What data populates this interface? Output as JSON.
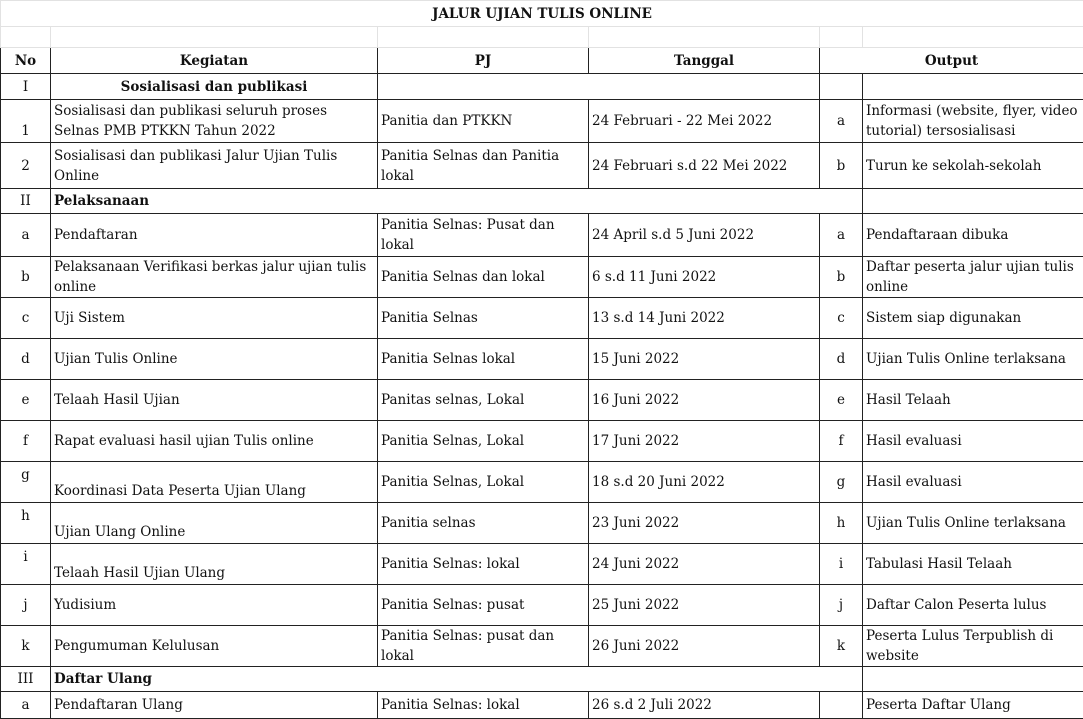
{
  "title": "JALUR UJIAN TULIS ONLINE",
  "headers": {
    "no": "No",
    "kegiatan": "Kegiatan",
    "pj": "PJ",
    "tanggal": "Tanggal",
    "output": "Output"
  },
  "rows": [
    {
      "type": "section-centered",
      "no": "I",
      "kegiatan": "Sosialisasi dan publikasi"
    },
    {
      "type": "item",
      "no": "1",
      "kegiatan": "Sosialisasi dan publikasi seluruh proses Selnas PMB PTKKN Tahun 2022",
      "pj": "Panitia dan PTKKN",
      "tanggal": "24 Februari  - 22 Mei 2022",
      "letter": "a",
      "output": "Informasi (website, flyer, video tutorial) tersosialisasi"
    },
    {
      "type": "item",
      "no": "2",
      "kegiatan": "Sosialisasi dan publikasi Jalur Ujian Tulis Online",
      "pj": "Panitia Selnas dan Panitia lokal",
      "tanggal": "24 Februari s.d 22 Mei 2022",
      "letter": "b",
      "output": "Turun ke sekolah-sekolah"
    },
    {
      "type": "section",
      "no": "II",
      "kegiatan": "Pelaksanaan"
    },
    {
      "type": "item",
      "no": "a",
      "kegiatan": "Pendaftaran",
      "pj": "Panitia Selnas: Pusat dan lokal",
      "tanggal": "24 April s.d 5 Juni 2022",
      "letter": "a",
      "output": "Pendaftaraan dibuka"
    },
    {
      "type": "item",
      "no": "b",
      "kegiatan": "Pelaksanaan Verifikasi berkas jalur ujian tulis online",
      "pj": "Panitia Selnas dan lokal",
      "tanggal": "6 s.d 11 Juni 2022",
      "letter": "b",
      "output": "Daftar peserta jalur ujian tulis online"
    },
    {
      "type": "item",
      "no": "c",
      "kegiatan": "Uji Sistem",
      "pj": "Panitia Selnas",
      "tanggal": "13 s.d 14 Juni 2022",
      "letter": "c",
      "output": "Sistem siap digunakan"
    },
    {
      "type": "item",
      "no": "d",
      "kegiatan": "Ujian Tulis Online",
      "pj": "Panitia Selnas lokal",
      "tanggal": "15 Juni 2022",
      "letter": "d",
      "output": "Ujian Tulis Online terlaksana"
    },
    {
      "type": "item",
      "no": "e",
      "kegiatan": "Telaah Hasil Ujian",
      "pj": "Panitas selnas, Lokal",
      "tanggal": "16 Juni 2022",
      "letter": "e",
      "output": "Hasil Telaah"
    },
    {
      "type": "item",
      "no": "f",
      "kegiatan": "Rapat evaluasi hasil ujian Tulis online",
      "pj": "Panitia Selnas, Lokal",
      "tanggal": "17 Juni 2022",
      "letter": "f",
      "output": "Hasil evaluasi"
    },
    {
      "type": "item",
      "no": "g",
      "kegiatan": "Koordinasi Data Peserta Ujian Ulang",
      "pj": "Panitia Selnas, Lokal",
      "tanggal": "18 s.d 20 Juni 2022",
      "letter": "g",
      "output": "Hasil evaluasi"
    },
    {
      "type": "item",
      "no": "h",
      "kegiatan": "Ujian Ulang Online",
      "pj": "Panitia selnas",
      "tanggal": "23 Juni 2022",
      "letter": "h",
      "output": "Ujian Tulis Online terlaksana"
    },
    {
      "type": "item",
      "no": "i",
      "kegiatan": "Telaah Hasil Ujian Ulang",
      "pj": "Panitia Selnas: lokal",
      "tanggal": "24 Juni 2022",
      "letter": "i",
      "output": "Tabulasi Hasil Telaah"
    },
    {
      "type": "item",
      "no": "j",
      "kegiatan": "Yudisium",
      "pj": "Panitia Selnas: pusat",
      "tanggal": "25 Juni 2022",
      "letter": "j",
      "output": "Daftar Calon Peserta lulus"
    },
    {
      "type": "item",
      "no": "k",
      "kegiatan": "Pengumuman Kelulusan",
      "pj": "Panitia Selnas: pusat dan lokal",
      "tanggal": "26 Juni 2022",
      "letter": "k",
      "output": "Peserta Lulus Terpublish di website"
    },
    {
      "type": "section",
      "no": "III",
      "kegiatan": "Daftar Ulang"
    },
    {
      "type": "item",
      "no": "a",
      "kegiatan": "Pendaftaran Ulang",
      "pj": "Panitia Selnas: lokal",
      "tanggal": "26 s.d 2 Juli 2022",
      "letter": "",
      "output": "Peserta Daftar Ulang"
    }
  ]
}
